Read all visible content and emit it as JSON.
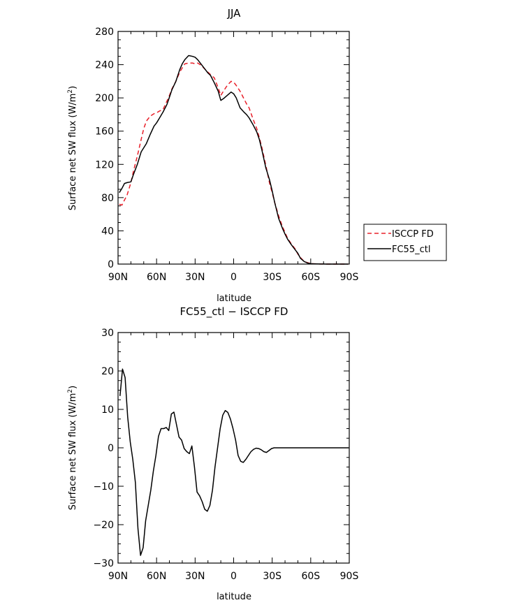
{
  "chart_data": [
    {
      "type": "line",
      "title": "JJA",
      "xlabel": "latitude",
      "ylabel": "Surface net SW flux (W/m²)",
      "xlim": [
        90,
        -90
      ],
      "ylim": [
        0,
        280
      ],
      "xticks": [
        90,
        60,
        30,
        0,
        -30,
        -60,
        -90
      ],
      "xtick_labels": [
        "90N",
        "60N",
        "30N",
        "0",
        "30S",
        "60S",
        "90S"
      ],
      "yticks": [
        0,
        40,
        80,
        120,
        160,
        200,
        240,
        280
      ],
      "ytick_labels": [
        "0",
        "40",
        "80",
        "120",
        "160",
        "200",
        "240",
        "280"
      ],
      "legend_position": "right",
      "series": [
        {
          "name": "ISCCP FD",
          "color": "#e8202a",
          "dash": "dashed",
          "x": [
            89,
            87,
            85,
            83,
            80,
            78,
            75,
            72,
            70,
            68,
            65,
            62,
            60,
            58,
            55,
            52,
            50,
            48,
            45,
            42,
            40,
            38,
            35,
            32,
            30,
            28,
            25,
            22,
            20,
            18,
            15,
            12,
            10,
            8,
            5,
            2,
            0,
            -2,
            -5,
            -8,
            -10,
            -12,
            -15,
            -18,
            -20,
            -22,
            -25,
            -28,
            -30,
            -32,
            -35,
            -38,
            -40,
            -42,
            -45,
            -48,
            -50,
            -52,
            -55,
            -58,
            -60,
            -62,
            -65,
            -68,
            -70,
            -72,
            -75,
            -78,
            -80,
            -82,
            -85,
            -88,
            -89
          ],
          "y": [
            72,
            71,
            77,
            83,
            98,
            112,
            130,
            150,
            163,
            172,
            178,
            181,
            182,
            184,
            186,
            196,
            203,
            211,
            220,
            231,
            236,
            241,
            242,
            242,
            241,
            242,
            239,
            234,
            231,
            228,
            224,
            212,
            203,
            208,
            215,
            220,
            219,
            215,
            208,
            199,
            193,
            188,
            175,
            163,
            152,
            140,
            119,
            97,
            86,
            74,
            58,
            45,
            38,
            31,
            24,
            18,
            12,
            8,
            3,
            1.5,
            0.7,
            0.4,
            0.2,
            0.1,
            0.1,
            0,
            0,
            0,
            0,
            0,
            0,
            0,
            0
          ]
        },
        {
          "name": "FC55_ctl",
          "color": "#000000",
          "dash": "solid",
          "x": [
            89,
            87,
            85,
            83,
            80,
            78,
            75,
            72,
            70,
            68,
            65,
            62,
            60,
            58,
            55,
            52,
            50,
            48,
            45,
            42,
            40,
            38,
            35,
            32,
            30,
            28,
            25,
            22,
            20,
            18,
            15,
            12,
            10,
            8,
            5,
            2,
            0,
            -2,
            -5,
            -8,
            -10,
            -12,
            -15,
            -18,
            -20,
            -22,
            -25,
            -28,
            -30,
            -32,
            -35,
            -38,
            -40,
            -42,
            -45,
            -48,
            -50,
            -52,
            -55,
            -58,
            -60,
            -62,
            -65,
            -68,
            -70,
            -72,
            -75,
            -78,
            -80,
            -82,
            -85,
            -88,
            -89
          ],
          "y": [
            86,
            91,
            97,
            98,
            99,
            108,
            120,
            135,
            140,
            145,
            156,
            166,
            170,
            175,
            183,
            192,
            201,
            210,
            220,
            234,
            241,
            246,
            251,
            250,
            249,
            246,
            240,
            234,
            230,
            227,
            218,
            208,
            197,
            199,
            203,
            207,
            205,
            200,
            188,
            183,
            180,
            176,
            168,
            159,
            150,
            137,
            116,
            101,
            88,
            74,
            55,
            43,
            36,
            30,
            23,
            17,
            13,
            7,
            3,
            1,
            0.5,
            0.3,
            0.2,
            0.1,
            0.1,
            0,
            0,
            0,
            0,
            0,
            0,
            0,
            0
          ]
        }
      ]
    },
    {
      "type": "line",
      "title": "FC55_ctl − ISCCP FD",
      "xlabel": "latitude",
      "ylabel": "Surface net SW flux (W/m²)",
      "xlim": [
        90,
        -90
      ],
      "ylim": [
        -30,
        30
      ],
      "xticks": [
        90,
        60,
        30,
        0,
        -30,
        -60,
        -90
      ],
      "xtick_labels": [
        "90N",
        "60N",
        "30N",
        "0",
        "30S",
        "60S",
        "90S"
      ],
      "yticks": [
        -30,
        -20,
        -10,
        0,
        10,
        20,
        30
      ],
      "ytick_labels": [
        "−30",
        "−20",
        "−10",
        "0",
        "10",
        "20",
        "30"
      ],
      "series": [
        {
          "color": "#000000",
          "dash": "solid",
          "x": [
            88.5,
            86.5,
            84.5,
            82.5,
            80.5,
            78.5,
            76.5,
            74.5,
            72.5,
            70.5,
            68.5,
            66.5,
            64.5,
            62.5,
            60.5,
            58.5,
            56.5,
            54.5,
            52.5,
            50.5,
            48.5,
            46.5,
            44.5,
            42.5,
            40.5,
            38.5,
            36.5,
            34.5,
            32.5,
            30.5,
            28.5,
            26.5,
            24.5,
            22.5,
            20.5,
            18.5,
            16.5,
            14.5,
            12.5,
            10.5,
            8.5,
            6.5,
            4.5,
            2.5,
            0.5,
            -1.5,
            -3.5,
            -5.5,
            -7.5,
            -9.5,
            -11.5,
            -13.5,
            -15.5,
            -17.5,
            -19.5,
            -21.5,
            -23.5,
            -25.5,
            -27.5,
            -29.5,
            -31.5,
            -33.5,
            -35.5,
            -37.5,
            -39.5,
            -41.5,
            -43.5,
            -45.5,
            -47.5,
            -49.5,
            -51.5,
            -53.5,
            -55.5,
            -57.5,
            -59.5,
            -61.5,
            -63.5,
            -65.5,
            -67.5,
            -69.5,
            -71.5,
            -73.5,
            -75.5,
            -77.5,
            -79.5,
            -81.5,
            -83.5,
            -85.5,
            -87.5,
            -89.5
          ],
          "y": [
            13.5,
            20.5,
            18.3,
            8.0,
            1.5,
            -3.0,
            -9.0,
            -21.0,
            -28.0,
            -26.0,
            -19.0,
            -15.0,
            -11.0,
            -6.0,
            -2.0,
            3.0,
            5.0,
            5.0,
            5.3,
            4.5,
            8.8,
            9.3,
            6.0,
            2.8,
            2.0,
            -0.2,
            -1.0,
            -1.5,
            0.5,
            -5.0,
            -11.5,
            -12.5,
            -14.0,
            -16.0,
            -16.5,
            -15.0,
            -11.0,
            -5.0,
            0.0,
            5.0,
            8.5,
            9.7,
            9.2,
            7.5,
            5.0,
            2.0,
            -2.0,
            -3.5,
            -3.8,
            -3.0,
            -2.0,
            -1.0,
            -0.4,
            -0.1,
            -0.2,
            -0.5,
            -1.0,
            -1.2,
            -0.7,
            -0.2,
            0.0,
            0.0,
            0.0,
            0.0,
            0.0,
            0.0,
            0.0,
            0.0,
            0.0,
            0.0,
            0.0,
            0.0,
            0.0,
            0.0,
            0.0,
            0.0,
            0.0,
            0.0,
            0.0,
            0.0,
            0.0,
            0.0,
            0.0,
            0.0,
            0.0,
            0.0,
            0.0,
            0.0,
            0.0,
            0.0
          ]
        }
      ]
    }
  ]
}
